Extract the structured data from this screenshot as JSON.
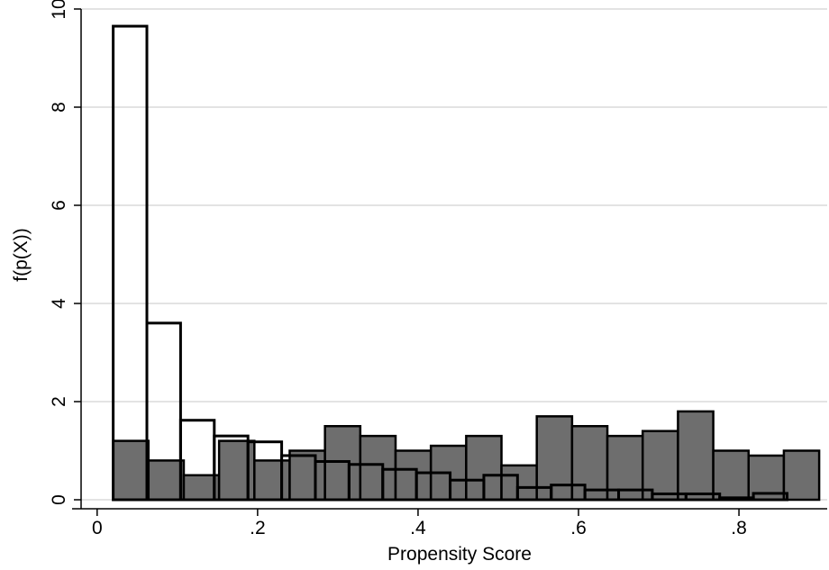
{
  "chart_data": {
    "type": "bar",
    "title": "",
    "xlabel": "Propensity Score",
    "ylabel": "f(p(X))",
    "xlim": [
      -0.02,
      0.91
    ],
    "ylim": [
      0,
      10
    ],
    "x_ticks": [
      {
        "value": 0,
        "label": "0"
      },
      {
        "value": 0.2,
        "label": ".2"
      },
      {
        "value": 0.4,
        "label": ".4"
      },
      {
        "value": 0.6,
        "label": ".6"
      },
      {
        "value": 0.8,
        "label": ".8"
      }
    ],
    "y_ticks": [
      {
        "value": 0,
        "label": "0"
      },
      {
        "value": 2,
        "label": "2"
      },
      {
        "value": 4,
        "label": "4"
      },
      {
        "value": 6,
        "label": "6"
      },
      {
        "value": 8,
        "label": "8"
      },
      {
        "value": 10,
        "label": "10"
      }
    ],
    "grid": true,
    "series": [
      {
        "style": "gray",
        "color": "#6e6e6e",
        "bins": [
          {
            "x0": 0.02,
            "x1": 0.064,
            "y": 1.2
          },
          {
            "x0": 0.064,
            "x1": 0.108,
            "y": 0.8
          },
          {
            "x0": 0.108,
            "x1": 0.152,
            "y": 0.5
          },
          {
            "x0": 0.152,
            "x1": 0.196,
            "y": 1.2
          },
          {
            "x0": 0.196,
            "x1": 0.24,
            "y": 0.8
          },
          {
            "x0": 0.24,
            "x1": 0.284,
            "y": 1.0
          },
          {
            "x0": 0.284,
            "x1": 0.328,
            "y": 1.5
          },
          {
            "x0": 0.328,
            "x1": 0.372,
            "y": 1.3
          },
          {
            "x0": 0.372,
            "x1": 0.416,
            "y": 1.0
          },
          {
            "x0": 0.416,
            "x1": 0.46,
            "y": 1.1
          },
          {
            "x0": 0.46,
            "x1": 0.504,
            "y": 1.3
          },
          {
            "x0": 0.504,
            "x1": 0.548,
            "y": 0.7
          },
          {
            "x0": 0.548,
            "x1": 0.592,
            "y": 1.7
          },
          {
            "x0": 0.592,
            "x1": 0.636,
            "y": 1.5
          },
          {
            "x0": 0.636,
            "x1": 0.68,
            "y": 1.3
          },
          {
            "x0": 0.68,
            "x1": 0.724,
            "y": 1.4
          },
          {
            "x0": 0.724,
            "x1": 0.768,
            "y": 1.8
          },
          {
            "x0": 0.768,
            "x1": 0.812,
            "y": 1.0
          },
          {
            "x0": 0.812,
            "x1": 0.856,
            "y": 0.9
          },
          {
            "x0": 0.856,
            "x1": 0.9,
            "y": 1.0
          }
        ]
      },
      {
        "style": "outline",
        "color": "#ffffff",
        "bins": [
          {
            "x0": 0.02,
            "x1": 0.062,
            "y": 9.65
          },
          {
            "x0": 0.062,
            "x1": 0.104,
            "y": 3.6
          },
          {
            "x0": 0.104,
            "x1": 0.146,
            "y": 1.62
          },
          {
            "x0": 0.146,
            "x1": 0.188,
            "y": 1.3
          },
          {
            "x0": 0.188,
            "x1": 0.23,
            "y": 1.18
          },
          {
            "x0": 0.23,
            "x1": 0.272,
            "y": 0.9
          },
          {
            "x0": 0.272,
            "x1": 0.314,
            "y": 0.78
          },
          {
            "x0": 0.314,
            "x1": 0.356,
            "y": 0.72
          },
          {
            "x0": 0.356,
            "x1": 0.398,
            "y": 0.62
          },
          {
            "x0": 0.398,
            "x1": 0.44,
            "y": 0.55
          },
          {
            "x0": 0.44,
            "x1": 0.482,
            "y": 0.4
          },
          {
            "x0": 0.482,
            "x1": 0.524,
            "y": 0.5
          },
          {
            "x0": 0.524,
            "x1": 0.566,
            "y": 0.25
          },
          {
            "x0": 0.566,
            "x1": 0.608,
            "y": 0.3
          },
          {
            "x0": 0.608,
            "x1": 0.65,
            "y": 0.2
          },
          {
            "x0": 0.65,
            "x1": 0.692,
            "y": 0.2
          },
          {
            "x0": 0.692,
            "x1": 0.734,
            "y": 0.12
          },
          {
            "x0": 0.734,
            "x1": 0.776,
            "y": 0.12
          },
          {
            "x0": 0.776,
            "x1": 0.818,
            "y": 0.04
          },
          {
            "x0": 0.818,
            "x1": 0.86,
            "y": 0.13
          }
        ]
      }
    ]
  }
}
